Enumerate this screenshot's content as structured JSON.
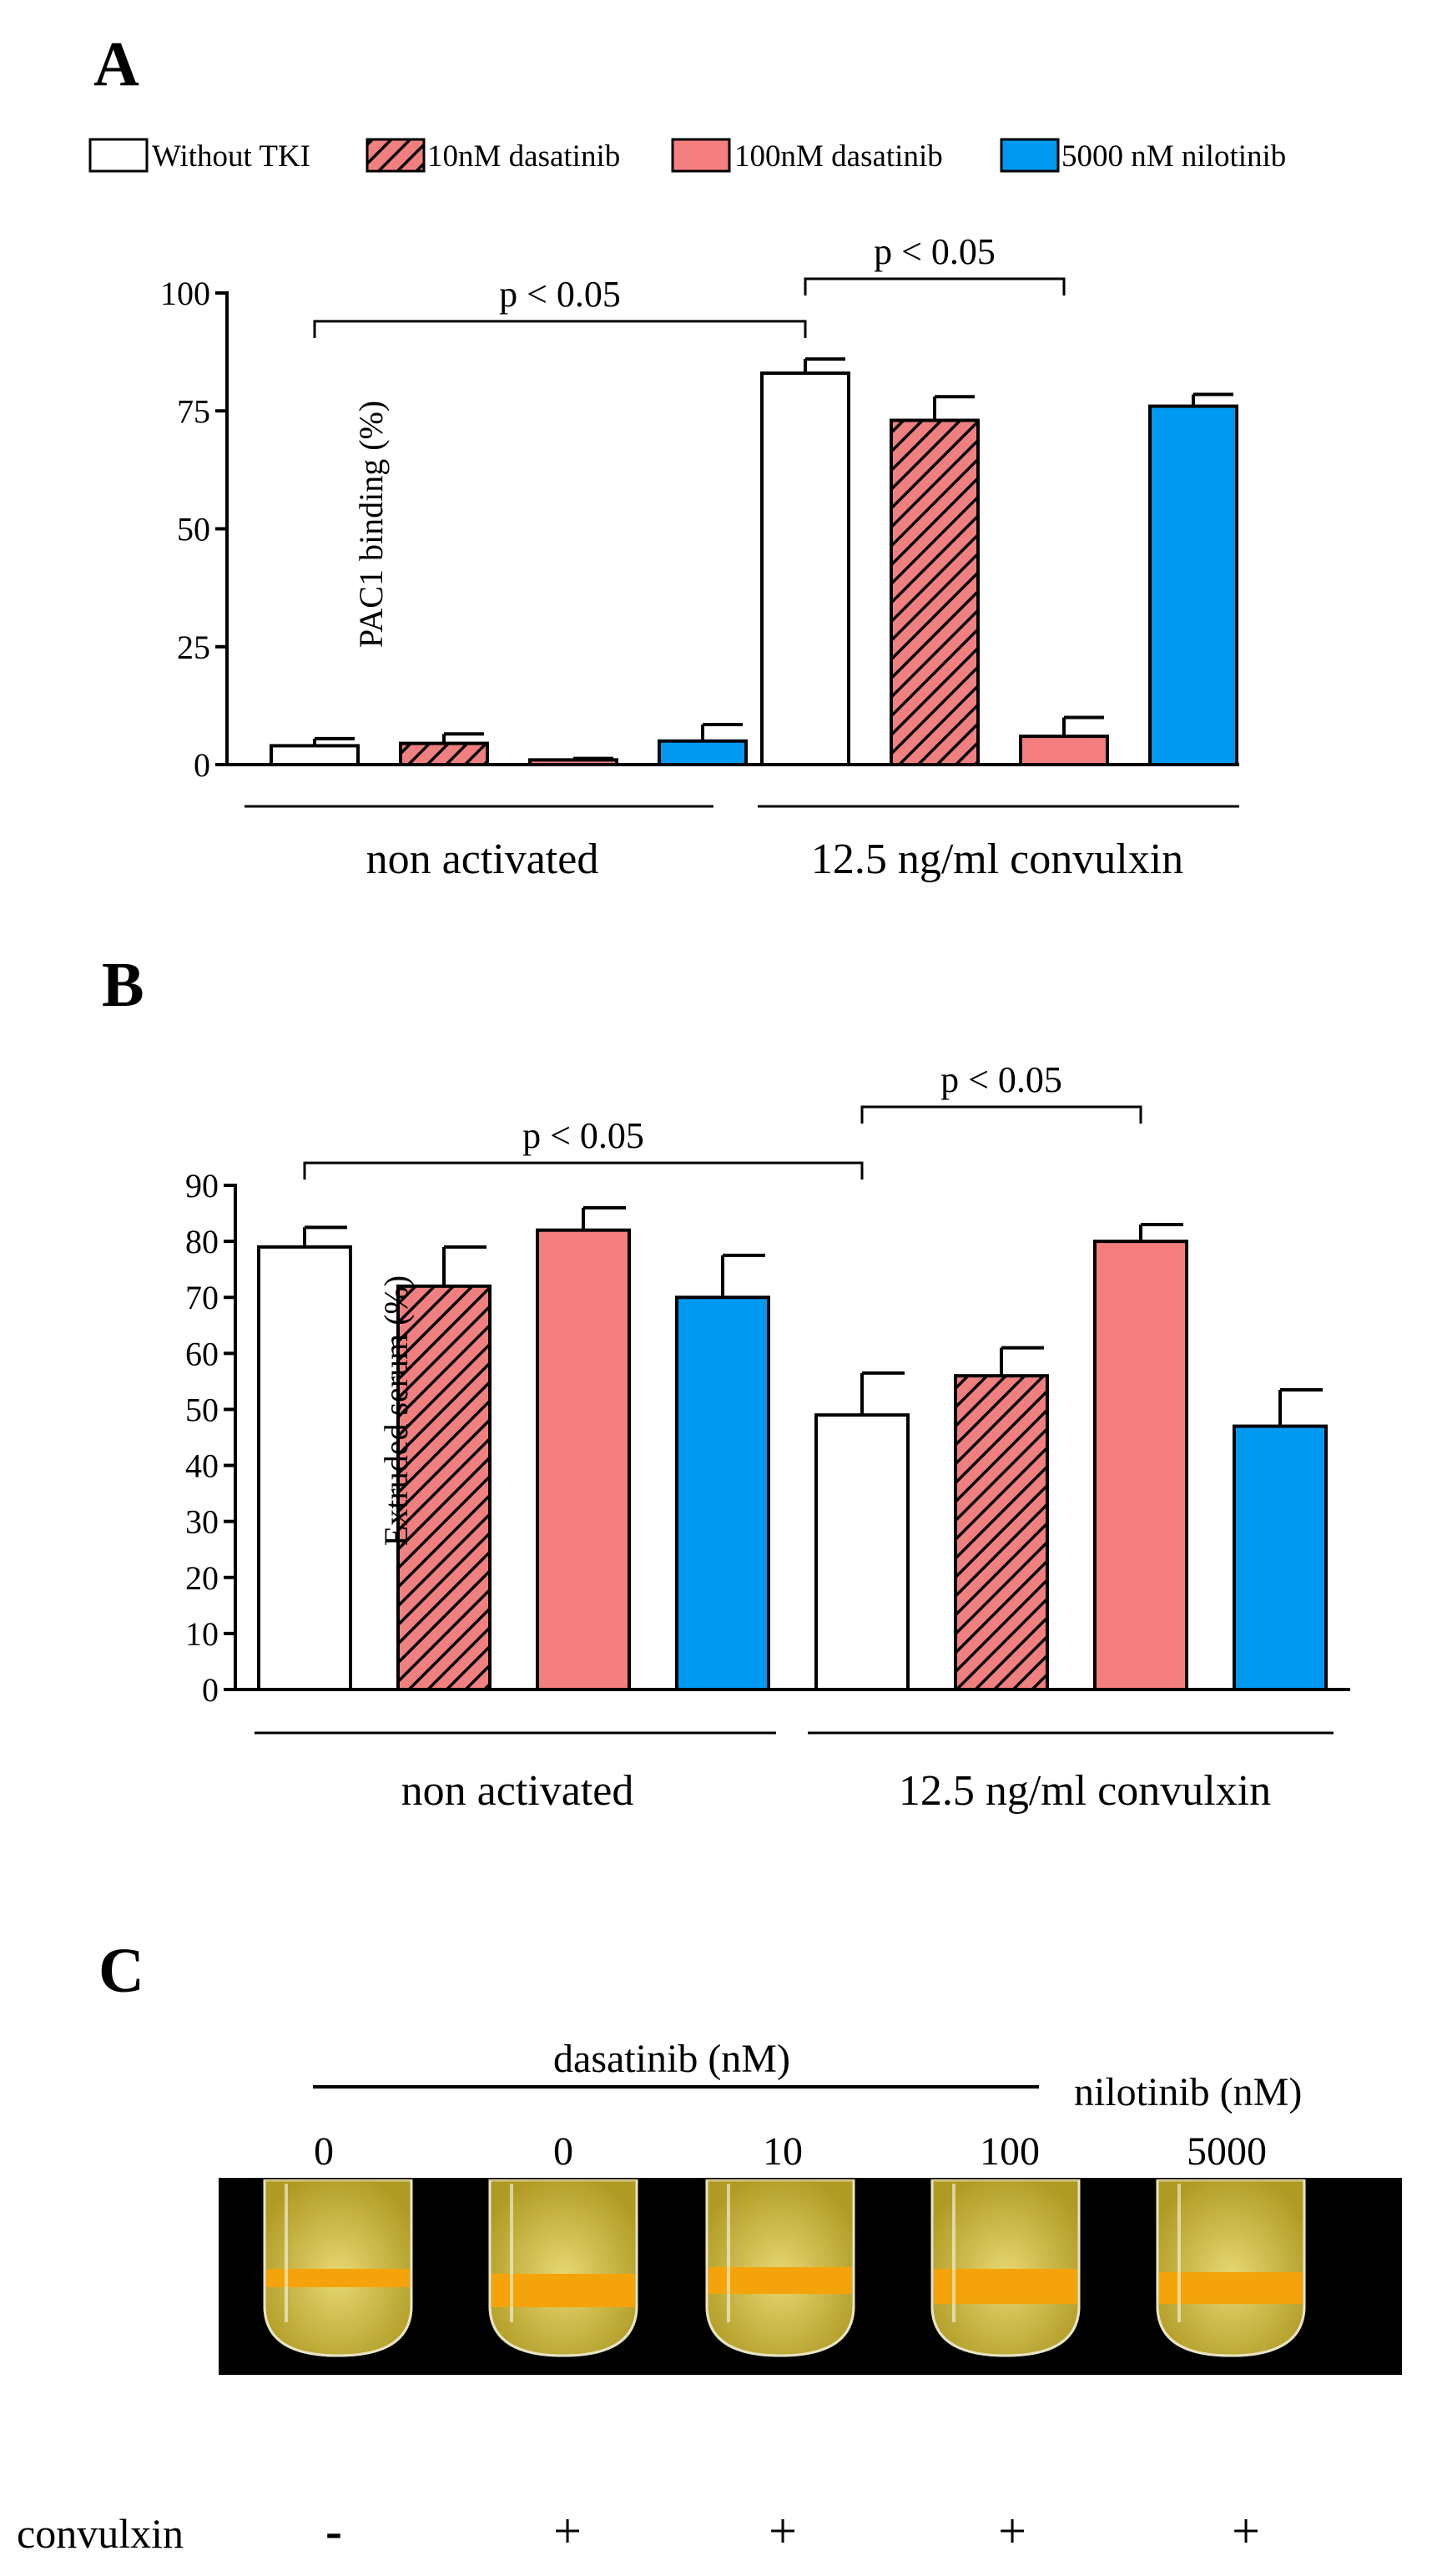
{
  "legend": {
    "items": [
      {
        "label": "Without TKI",
        "fill": "#ffffff",
        "hatch": false
      },
      {
        "label": "10nM dasatinib",
        "fill": "#f08080",
        "hatch": true
      },
      {
        "label": "100nM dasatinib",
        "fill": "#f57f7f",
        "hatch": false
      },
      {
        "label": "5000 nM nilotinib",
        "fill": "#0099f2",
        "hatch": false
      }
    ]
  },
  "colors": {
    "white": "#ffffff",
    "hatch_base": "#f08080",
    "salmon": "#f57f7f",
    "blue": "#0099f2",
    "photo_bg": "#000000",
    "serum": "#f2ba2a",
    "clot": "#f4a40a"
  },
  "chart_data": [
    {
      "panel": "A",
      "type": "bar",
      "ylabel": "PAC1 binding (%)",
      "ylim": [
        0,
        100
      ],
      "yticks": [
        0,
        25,
        50,
        75,
        100
      ],
      "groups": [
        "non activated",
        "12.5 ng/ml convulxin"
      ],
      "series": [
        {
          "name": "Without TKI",
          "values": [
            4,
            83
          ],
          "errors": [
            1.5,
            3
          ]
        },
        {
          "name": "10nM dasatinib",
          "values": [
            4.5,
            73
          ],
          "errors": [
            2,
            5
          ]
        },
        {
          "name": "100nM dasatinib",
          "values": [
            1,
            6
          ],
          "errors": [
            0.3,
            4
          ]
        },
        {
          "name": "5000 nM nilotinib",
          "values": [
            5,
            76
          ],
          "errors": [
            3.5,
            2.5
          ]
        }
      ],
      "significance": [
        {
          "label": "p < 0.05",
          "from": [
            "non activated",
            "Without TKI"
          ],
          "to": [
            "12.5 ng/ml convulxin",
            "Without TKI"
          ],
          "level": 94
        },
        {
          "label": "p < 0.05",
          "from": [
            "12.5 ng/ml convulxin",
            "Without TKI"
          ],
          "to": [
            "12.5 ng/ml convulxin",
            "100nM dasatinib"
          ],
          "level": 103
        }
      ]
    },
    {
      "panel": "B",
      "type": "bar",
      "ylabel": "Extruded serum (%)",
      "ylim": [
        0,
        90
      ],
      "yticks": [
        0,
        10,
        20,
        30,
        40,
        50,
        60,
        70,
        80,
        90
      ],
      "groups": [
        "non activated",
        "12.5 ng/ml convulxin"
      ],
      "series": [
        {
          "name": "Without TKI",
          "values": [
            79,
            49
          ],
          "errors": [
            3.5,
            7.5
          ]
        },
        {
          "name": "10nM dasatinib",
          "values": [
            72,
            56
          ],
          "errors": [
            7,
            5
          ]
        },
        {
          "name": "100nM dasatinib",
          "values": [
            82,
            80
          ],
          "errors": [
            4,
            3
          ]
        },
        {
          "name": "5000 nM nilotinib",
          "values": [
            70,
            47
          ],
          "errors": [
            7.5,
            6.5
          ]
        }
      ],
      "significance": [
        {
          "label": "p < 0.05",
          "from": [
            "non activated",
            "Without TKI"
          ],
          "to": [
            "12.5 ng/ml convulxin",
            "Without TKI"
          ],
          "level": 94
        },
        {
          "label": "p < 0.05",
          "from": [
            "12.5 ng/ml convulxin",
            "Without TKI"
          ],
          "to": [
            "12.5 ng/ml convulxin",
            "100nM dasatinib"
          ],
          "level": 104
        }
      ]
    }
  ],
  "panel_a": {
    "letter": "A",
    "p1": "p < 0.05",
    "p2": "p < 0.05"
  },
  "panel_b": {
    "letter": "B",
    "p1": "p < 0.05",
    "p2": "p < 0.05"
  },
  "panel_c": {
    "letter": "C",
    "dasatinib_header": "dasatinib (nM)",
    "nilotinib_header": "nilotinib (nM)",
    "doses": [
      "0",
      "0",
      "10",
      "100",
      "5000"
    ],
    "convulxin_label": "convulxin",
    "convulxin_signs": [
      "-",
      "+",
      "+",
      "+",
      "+"
    ]
  }
}
